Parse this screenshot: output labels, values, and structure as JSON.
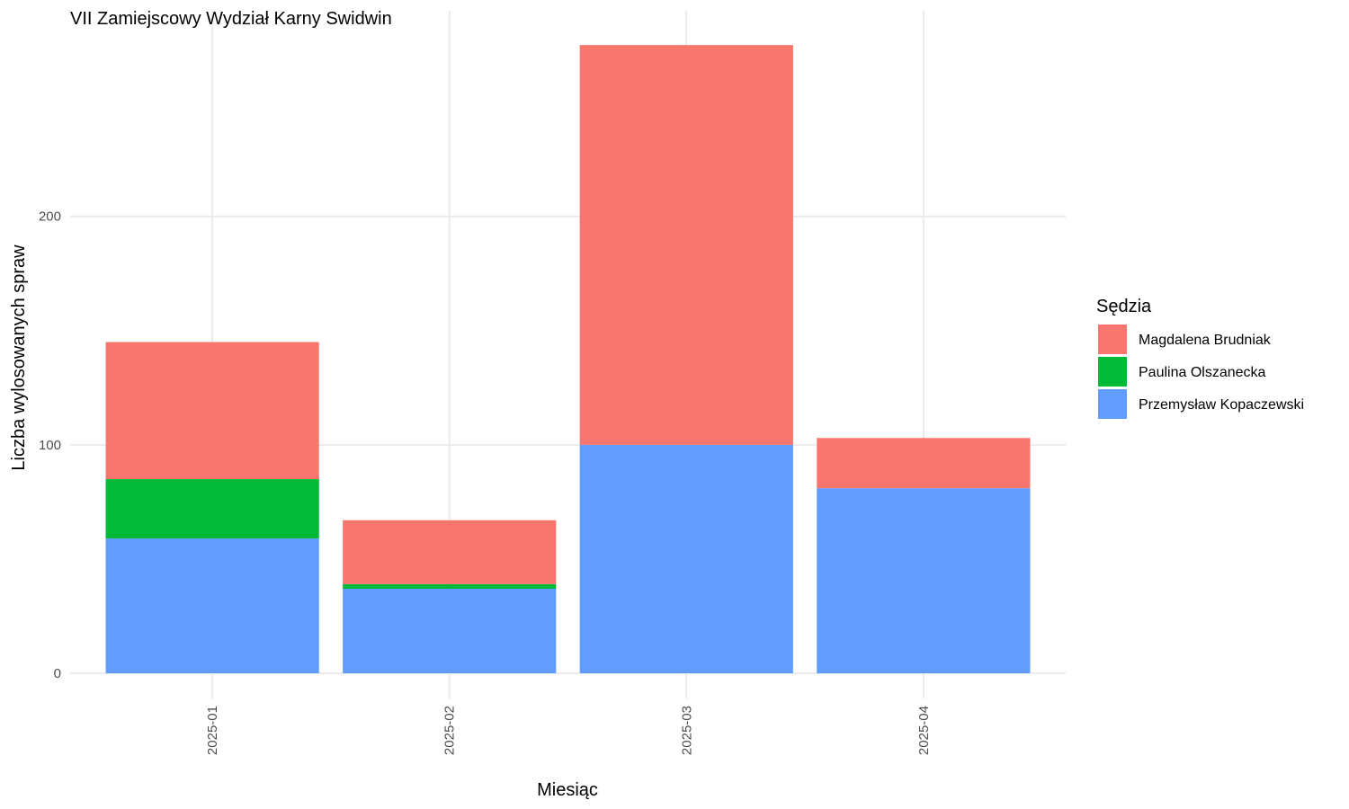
{
  "chart_data": {
    "type": "bar",
    "stacked": true,
    "title": "VII Zamiejscowy Wydział Karny Swidwin",
    "xlabel": "Miesiąc",
    "ylabel": "Liczba wylosowanych spraw",
    "categories": [
      "2025-01",
      "2025-02",
      "2025-03",
      "2025-04"
    ],
    "yticks": [
      0,
      100,
      200
    ],
    "ylim": [
      -11,
      290
    ],
    "grid": true,
    "legend": {
      "title": "Sędzia",
      "placement": "right"
    },
    "series": [
      {
        "name": "Magdalena Brudniak",
        "color": "#F8766D",
        "values": [
          60,
          28,
          175,
          22
        ]
      },
      {
        "name": "Paulina Olszanecka",
        "color": "#00BA38",
        "values": [
          26,
          2,
          0,
          0
        ]
      },
      {
        "name": "Przemysław Kopaczewski",
        "color": "#619CFF",
        "values": [
          59,
          37,
          100,
          81
        ]
      }
    ],
    "stack_order_bottom_to_top": [
      "Przemysław Kopaczewski",
      "Paulina Olszanecka",
      "Magdalena Brudniak"
    ]
  }
}
